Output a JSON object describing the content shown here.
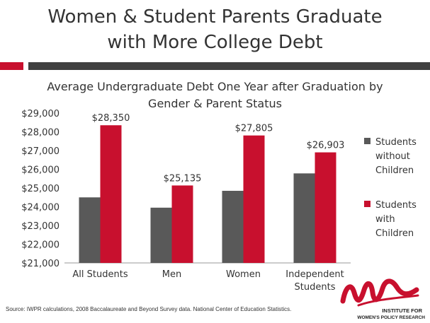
{
  "slide": {
    "title_line1": "Women & Student Parents Graduate",
    "title_line2": "with More College Debt"
  },
  "chart_data": {
    "type": "bar",
    "title_line1": "Average Undergraduate Debt One Year after Graduation by",
    "title_line2": "Gender & Parent Status",
    "categories": [
      [
        "All Students"
      ],
      [
        "Men"
      ],
      [
        "Women"
      ],
      [
        "Independent",
        "Students"
      ]
    ],
    "series": [
      {
        "name": "Students without Children",
        "legend_lines": [
          "Students",
          "without",
          "Children"
        ],
        "color": "#595959",
        "values": [
          24500,
          23950,
          24850,
          25780
        ]
      },
      {
        "name": "Students with Children",
        "legend_lines": [
          "Students",
          "with",
          "Children"
        ],
        "color": "#c8102e",
        "values": [
          28350,
          25135,
          27805,
          26903
        ]
      }
    ],
    "data_labels": [
      "$28,350",
      "$25,135",
      "$27,805",
      "$26,903"
    ],
    "ylim": [
      21000,
      29000
    ],
    "ytick_labels": [
      "$21,000",
      "$22,000",
      "$23,000",
      "$24,000",
      "$25,000",
      "$26,000",
      "$27,000",
      "$28,000",
      "$29,000"
    ],
    "grid": false,
    "legend_placement": "right"
  },
  "footnote": "Source: IWPR calculations, 2008 Baccalaureate and Beyond Survey data. National Center of Education Statistics.",
  "logo": {
    "text_line1": "INSTITUTE FOR",
    "text_line2": "WOMEN'S POLICY RESEARCH",
    "color": "#c8102e"
  }
}
